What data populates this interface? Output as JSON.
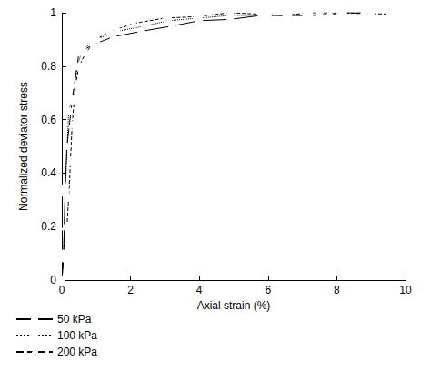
{
  "chart_data": {
    "type": "line",
    "x_label": "Axial strain (%)",
    "y_label": "Normalized deviator stress",
    "xlim": [
      0,
      10
    ],
    "xticks": [
      0,
      2,
      4,
      6,
      8,
      10
    ],
    "ylim": [
      0,
      1
    ],
    "yticks": [
      0,
      0.2,
      0.4,
      0.6,
      0.8,
      1
    ],
    "grid": false,
    "legend": "lower left",
    "series": [
      {
        "name": "50 kPa",
        "color": "#000000",
        "marker": "circle",
        "line_style": "solid",
        "x": [
          0,
          0.05,
          0.1,
          0.15,
          0.3,
          0.5,
          0.9,
          1.5,
          2.3,
          3.2,
          4,
          4.9,
          5.8,
          6.6,
          7.5,
          8.2,
          9
        ],
        "values": [
          0,
          0.08,
          0.35,
          0.5,
          0.67,
          0.85,
          0.88,
          0.91,
          0.93,
          0.95,
          0.97,
          0.975,
          0.99,
          0.99,
          0.99,
          1.0,
          1.0
        ]
      },
      {
        "name": "100 kPa",
        "color": "#000000",
        "marker": "square",
        "line_style": "dotted",
        "x": [
          0,
          0.05,
          0.1,
          0.2,
          0.3,
          0.45,
          0.6,
          1.0,
          1.6,
          2.4,
          3.1,
          4,
          4.9,
          6,
          7.1,
          8.1,
          8.8
        ],
        "values": [
          0,
          0.1,
          0.33,
          0.63,
          0.68,
          0.8,
          0.86,
          0.9,
          0.93,
          0.95,
          0.97,
          0.98,
          0.99,
          0.99,
          0.99,
          1.0,
          1.0
        ]
      },
      {
        "name": "200 kPa",
        "color": "#000000",
        "marker": "triangle",
        "line_style": "dashed",
        "x": [
          0,
          0.05,
          0.1,
          0.15,
          0.2,
          0.25,
          0.3,
          0.4,
          0.5,
          0.7,
          1.0,
          1.4,
          2.1,
          3,
          3.9,
          4.9,
          6.5,
          7.2,
          7.8,
          9.5
        ],
        "values": [
          0,
          0.09,
          0.2,
          0.2,
          0.31,
          0.44,
          0.58,
          0.73,
          0.8,
          0.85,
          0.9,
          0.93,
          0.96,
          0.98,
          0.985,
          1.0,
          0.99,
          1.0,
          1.0,
          0.995
        ]
      }
    ]
  }
}
